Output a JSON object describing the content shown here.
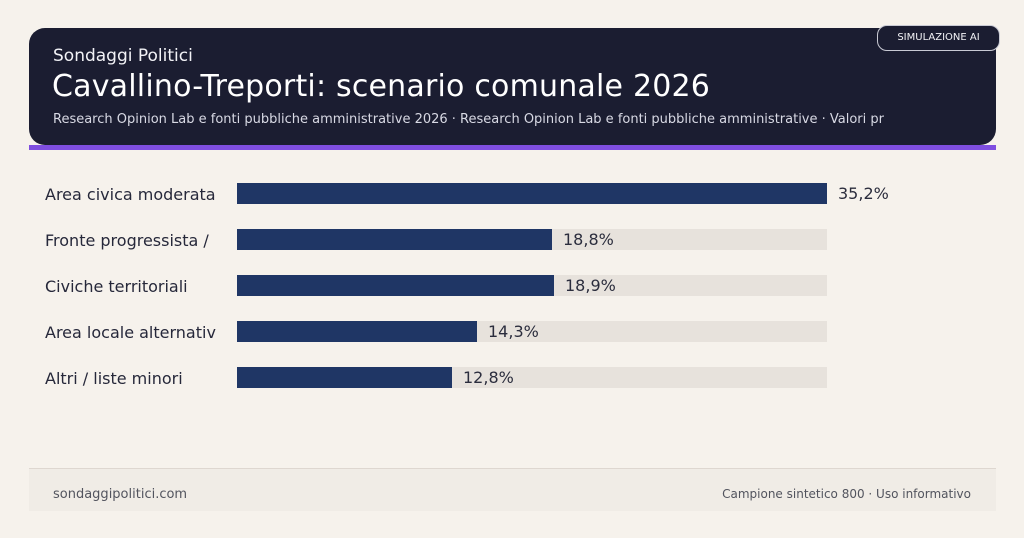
{
  "header": {
    "brand": "Sondaggi Politici",
    "title": "Cavallino-Treporti: scenario comunale 2026",
    "subtitle": "Research Opinion Lab e fonti pubbliche amministrative 2026 · Research Opinion Lab e fonti pubbliche amministrative · Valori pr",
    "badge": "SIMULAZIONE AI"
  },
  "colors": {
    "header_bg": "#1b1d31",
    "accent": "#7f4ee0",
    "bar": "#1f3665",
    "track": "#e7e2dc",
    "page_bg": "#f6f2ec"
  },
  "chart_data": {
    "type": "bar",
    "orientation": "horizontal",
    "categories": [
      "Area civica moderata",
      "Fronte progressista /",
      "Civiche territoriali",
      "Area locale alternativ",
      "Altri / liste minori"
    ],
    "values": [
      35.2,
      18.8,
      18.9,
      14.3,
      12.8
    ],
    "value_labels": [
      "35,2%",
      "18,8%",
      "18,9%",
      "14,3%",
      "12,8%"
    ],
    "xlim": [
      0,
      35.2
    ],
    "unit": "%",
    "grid": false,
    "legend": "none"
  },
  "footer": {
    "left": "sondaggipolitici.com",
    "right": "Campione sintetico 800 · Uso informativo"
  }
}
